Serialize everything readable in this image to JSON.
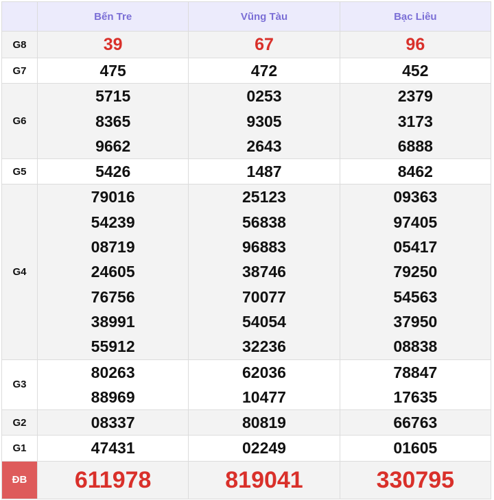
{
  "provinces": [
    "Bến Tre",
    "Vũng Tàu",
    "Bạc Liêu"
  ],
  "rows": [
    {
      "label": "G8",
      "values": [
        [
          "39"
        ],
        [
          "67"
        ],
        [
          "96"
        ]
      ]
    },
    {
      "label": "G7",
      "values": [
        [
          "475"
        ],
        [
          "472"
        ],
        [
          "452"
        ]
      ]
    },
    {
      "label": "G6",
      "values": [
        [
          "5715",
          "8365",
          "9662"
        ],
        [
          "0253",
          "9305",
          "2643"
        ],
        [
          "2379",
          "3173",
          "6888"
        ]
      ]
    },
    {
      "label": "G5",
      "values": [
        [
          "5426"
        ],
        [
          "1487"
        ],
        [
          "8462"
        ]
      ]
    },
    {
      "label": "G4",
      "values": [
        [
          "79016",
          "54239",
          "08719",
          "24605",
          "76756",
          "38991",
          "55912"
        ],
        [
          "25123",
          "56838",
          "96883",
          "38746",
          "70077",
          "54054",
          "32236"
        ],
        [
          "09363",
          "97405",
          "05417",
          "79250",
          "54563",
          "37950",
          "08838"
        ]
      ]
    },
    {
      "label": "G3",
      "values": [
        [
          "80263",
          "88969"
        ],
        [
          "62036",
          "10477"
        ],
        [
          "78847",
          "17635"
        ]
      ]
    },
    {
      "label": "G2",
      "values": [
        [
          "08337"
        ],
        [
          "80819"
        ],
        [
          "66763"
        ]
      ]
    },
    {
      "label": "G1",
      "values": [
        [
          "47431"
        ],
        [
          "02249"
        ],
        [
          "01605"
        ]
      ]
    },
    {
      "label": "ĐB",
      "values": [
        [
          "611978"
        ],
        [
          "819041"
        ],
        [
          "330795"
        ]
      ]
    }
  ],
  "colors": {
    "header_bg": "#ecebfc",
    "header_text": "#7b6fd6",
    "highlight": "#d9302a",
    "db_label_bg": "#de5b5b"
  }
}
